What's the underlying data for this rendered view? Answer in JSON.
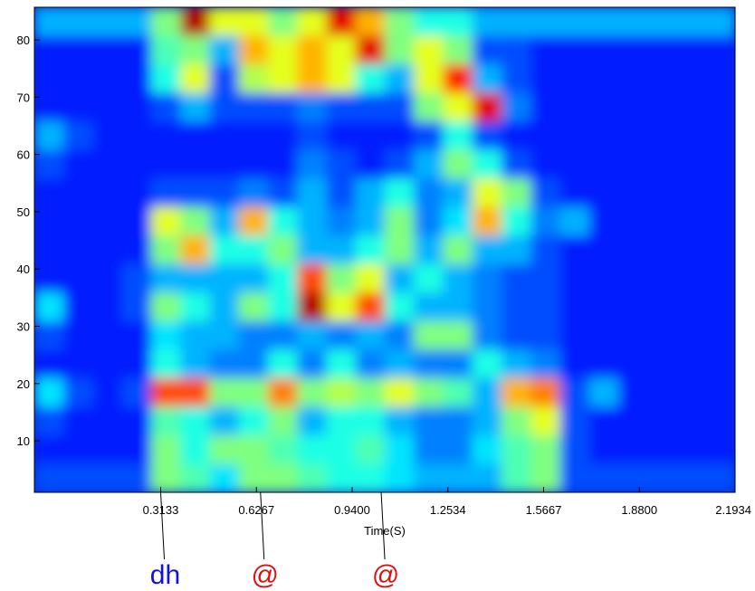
{
  "chart_data": {
    "type": "heatmap",
    "colormap": "jet",
    "x_label": "Time(S)",
    "xlim": [
      -0.1,
      2.1934
    ],
    "ylim": [
      1,
      85.7
    ],
    "xticks": [
      0.3133,
      0.6267,
      {
        "value": 0.94,
        "label": "0.9400"
      },
      1.2534,
      1.5667,
      {
        "value": 1.88,
        "label": "1.8800"
      },
      2.1934
    ],
    "yticks": [
      10,
      20,
      30,
      40,
      50,
      60,
      70,
      80
    ],
    "z": [
      [
        0.3,
        0.3,
        0.3,
        0.3,
        0.5,
        0.95,
        0.6,
        0.6,
        0.5,
        0.6,
        0.9,
        0.7,
        0.5,
        0.4,
        0.4,
        0.3,
        0.3,
        0.3,
        0.3,
        0.3,
        0.3,
        0.3,
        0.3,
        0.3
      ],
      [
        0.15,
        0.15,
        0.15,
        0.15,
        0.45,
        0.5,
        0.3,
        0.7,
        0.6,
        0.7,
        0.6,
        0.9,
        0.5,
        0.6,
        0.5,
        0.2,
        0.2,
        0.15,
        0.15,
        0.15,
        0.15,
        0.15,
        0.15,
        0.15
      ],
      [
        0.15,
        0.15,
        0.15,
        0.15,
        0.4,
        0.6,
        0.2,
        0.55,
        0.6,
        0.7,
        0.6,
        0.4,
        0.3,
        0.6,
        0.85,
        0.3,
        0.2,
        0.15,
        0.15,
        0.15,
        0.15,
        0.15,
        0.15,
        0.15
      ],
      [
        0.15,
        0.15,
        0.15,
        0.15,
        0.2,
        0.3,
        0.2,
        0.2,
        0.2,
        0.25,
        0.2,
        0.2,
        0.2,
        0.5,
        0.6,
        0.9,
        0.25,
        0.15,
        0.15,
        0.15,
        0.15,
        0.15,
        0.15,
        0.15
      ],
      [
        0.3,
        0.2,
        0.15,
        0.15,
        0.15,
        0.15,
        0.15,
        0.15,
        0.15,
        0.2,
        0.15,
        0.15,
        0.15,
        0.2,
        0.4,
        0.2,
        0.15,
        0.15,
        0.15,
        0.15,
        0.15,
        0.15,
        0.15,
        0.15
      ],
      [
        0.2,
        0.15,
        0.15,
        0.15,
        0.15,
        0.15,
        0.15,
        0.15,
        0.15,
        0.25,
        0.2,
        0.15,
        0.2,
        0.3,
        0.5,
        0.4,
        0.2,
        0.15,
        0.15,
        0.15,
        0.15,
        0.15,
        0.15,
        0.15
      ],
      [
        0.15,
        0.15,
        0.15,
        0.15,
        0.2,
        0.2,
        0.2,
        0.25,
        0.2,
        0.3,
        0.2,
        0.3,
        0.4,
        0.25,
        0.3,
        0.6,
        0.5,
        0.2,
        0.15,
        0.15,
        0.15,
        0.15,
        0.15,
        0.15
      ],
      [
        0.15,
        0.15,
        0.15,
        0.15,
        0.6,
        0.5,
        0.3,
        0.7,
        0.4,
        0.3,
        0.25,
        0.3,
        0.5,
        0.25,
        0.35,
        0.7,
        0.4,
        0.25,
        0.3,
        0.15,
        0.15,
        0.15,
        0.15,
        0.15
      ],
      [
        0.15,
        0.15,
        0.15,
        0.15,
        0.5,
        0.7,
        0.4,
        0.4,
        0.5,
        0.3,
        0.3,
        0.4,
        0.5,
        0.3,
        0.5,
        0.3,
        0.3,
        0.2,
        0.15,
        0.15,
        0.15,
        0.15,
        0.15,
        0.15
      ],
      [
        0.15,
        0.15,
        0.15,
        0.2,
        0.3,
        0.3,
        0.3,
        0.3,
        0.4,
        0.8,
        0.5,
        0.6,
        0.3,
        0.4,
        0.3,
        0.25,
        0.2,
        0.2,
        0.15,
        0.15,
        0.15,
        0.15,
        0.15,
        0.15
      ],
      [
        0.35,
        0.15,
        0.15,
        0.2,
        0.5,
        0.4,
        0.3,
        0.5,
        0.4,
        0.95,
        0.6,
        0.8,
        0.4,
        0.3,
        0.3,
        0.25,
        0.2,
        0.2,
        0.15,
        0.15,
        0.15,
        0.15,
        0.15,
        0.15
      ],
      [
        0.2,
        0.15,
        0.15,
        0.15,
        0.35,
        0.3,
        0.3,
        0.25,
        0.25,
        0.3,
        0.25,
        0.3,
        0.25,
        0.5,
        0.5,
        0.25,
        0.2,
        0.2,
        0.15,
        0.15,
        0.15,
        0.15,
        0.15,
        0.15
      ],
      [
        0.15,
        0.15,
        0.15,
        0.15,
        0.4,
        0.3,
        0.25,
        0.25,
        0.4,
        0.25,
        0.4,
        0.25,
        0.3,
        0.25,
        0.25,
        0.4,
        0.3,
        0.25,
        0.15,
        0.15,
        0.15,
        0.15,
        0.15,
        0.15
      ],
      [
        0.35,
        0.2,
        0.15,
        0.2,
        0.8,
        0.8,
        0.5,
        0.5,
        0.75,
        0.5,
        0.55,
        0.5,
        0.6,
        0.5,
        0.45,
        0.3,
        0.7,
        0.75,
        0.2,
        0.3,
        0.15,
        0.15,
        0.15,
        0.15
      ],
      [
        0.2,
        0.15,
        0.15,
        0.15,
        0.45,
        0.4,
        0.3,
        0.4,
        0.5,
        0.3,
        0.4,
        0.4,
        0.3,
        0.25,
        0.25,
        0.3,
        0.5,
        0.6,
        0.2,
        0.15,
        0.15,
        0.15,
        0.15,
        0.15
      ],
      [
        0.15,
        0.15,
        0.15,
        0.15,
        0.5,
        0.4,
        0.5,
        0.5,
        0.45,
        0.4,
        0.4,
        0.45,
        0.35,
        0.25,
        0.25,
        0.35,
        0.45,
        0.5,
        0.2,
        0.15,
        0.15,
        0.15,
        0.15,
        0.15
      ],
      [
        0.2,
        0.2,
        0.2,
        0.2,
        0.5,
        0.45,
        0.35,
        0.5,
        0.5,
        0.45,
        0.4,
        0.4,
        0.35,
        0.3,
        0.3,
        0.3,
        0.45,
        0.5,
        0.2,
        0.2,
        0.2,
        0.2,
        0.2,
        0.2
      ]
    ],
    "annotations": [
      {
        "text": "dh",
        "x": 0.3133,
        "color": "#1010e0"
      },
      {
        "text": "@",
        "x": 0.64,
        "color": "#e01010"
      },
      {
        "text": "@",
        "x": 1.035,
        "color": "#e01010"
      }
    ]
  }
}
